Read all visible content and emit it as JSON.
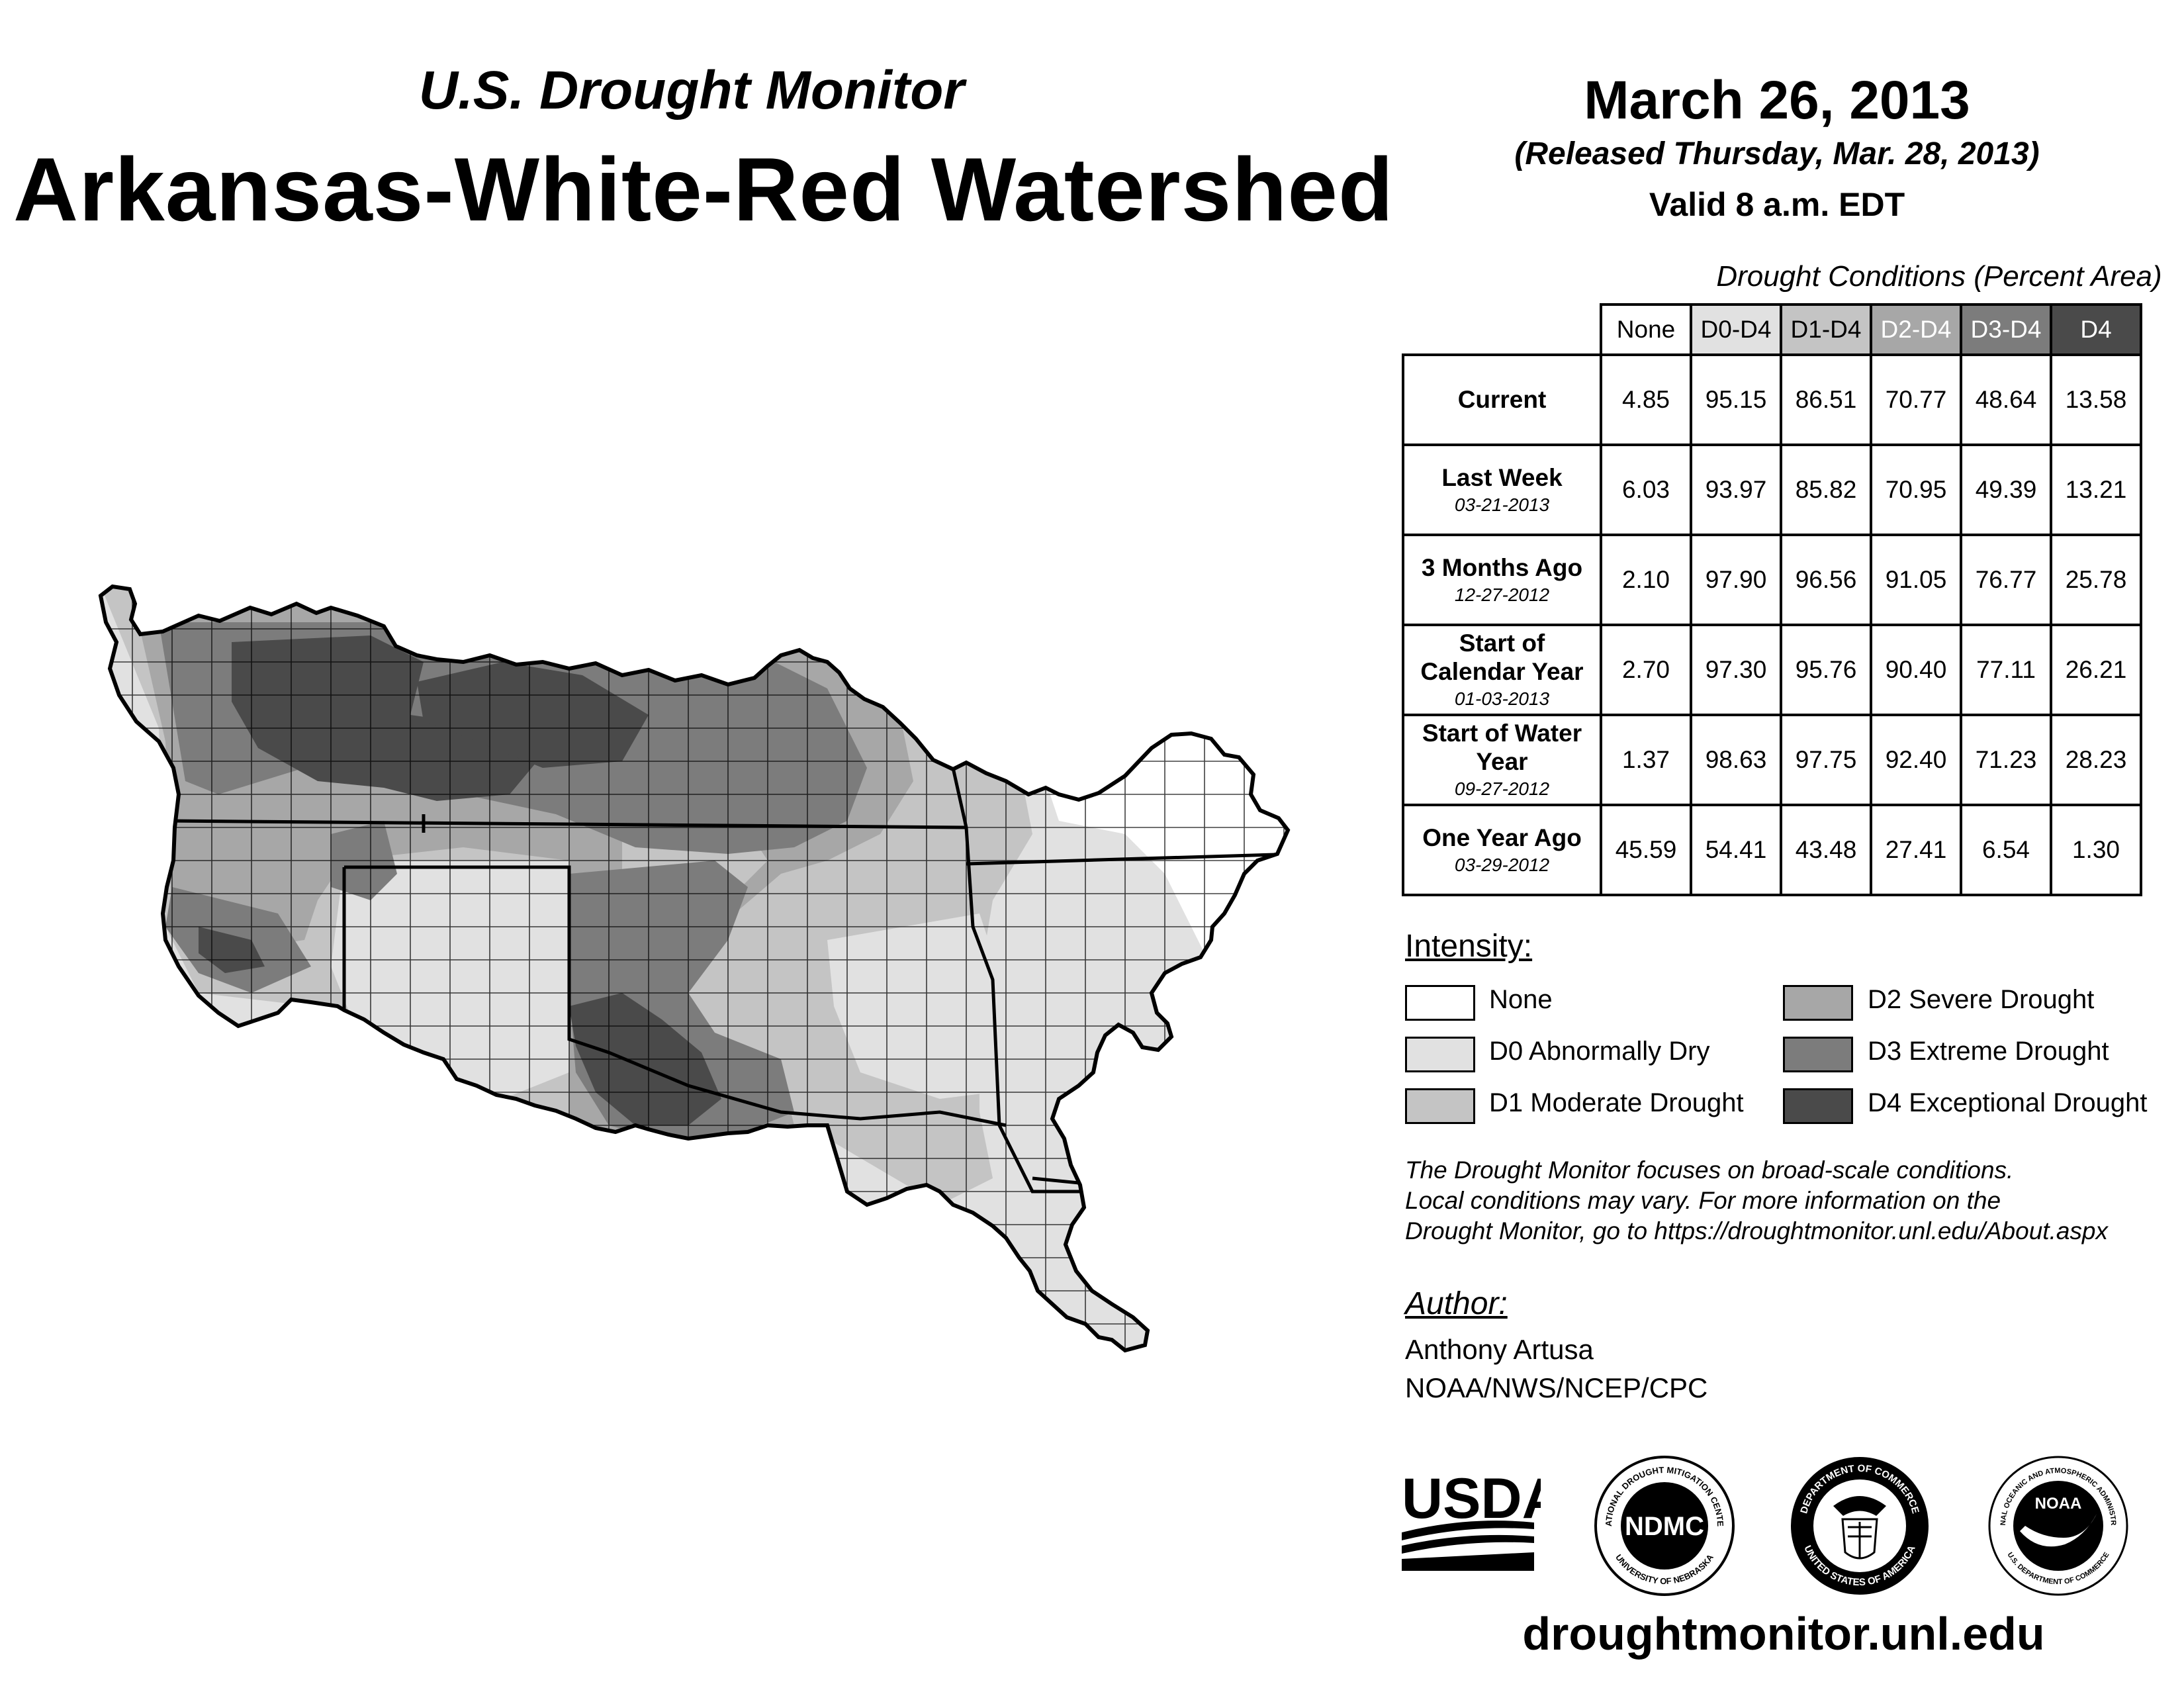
{
  "header": {
    "supertitle": "U.S. Drought Monitor",
    "title": "Arkansas-White-Red Watershed",
    "date": "March 26, 2013",
    "released": "(Released Thursday, Mar. 28, 2013)",
    "valid": "Valid 8 a.m. EDT"
  },
  "conditions": {
    "caption": "Drought Conditions (Percent Area)",
    "columns": [
      "None",
      "D0-D4",
      "D1-D4",
      "D2-D4",
      "D3-D4",
      "D4"
    ],
    "rows": [
      {
        "label": "Current",
        "date": "",
        "values": [
          "4.85",
          "95.15",
          "86.51",
          "70.77",
          "48.64",
          "13.58"
        ]
      },
      {
        "label": "Last Week",
        "date": "03-21-2013",
        "values": [
          "6.03",
          "93.97",
          "85.82",
          "70.95",
          "49.39",
          "13.21"
        ]
      },
      {
        "label": "3 Months Ago",
        "date": "12-27-2012",
        "values": [
          "2.10",
          "97.90",
          "96.56",
          "91.05",
          "76.77",
          "25.78"
        ]
      },
      {
        "label": "Start of Calendar Year",
        "date": "01-03-2013",
        "values": [
          "2.70",
          "97.30",
          "95.76",
          "90.40",
          "77.11",
          "26.21"
        ]
      },
      {
        "label": "Start of Water Year",
        "date": "09-27-2012",
        "values": [
          "1.37",
          "98.63",
          "97.75",
          "92.40",
          "71.23",
          "28.23"
        ]
      },
      {
        "label": "One Year Ago",
        "date": "03-29-2012",
        "values": [
          "45.59",
          "54.41",
          "43.48",
          "27.41",
          "6.54",
          "1.30"
        ]
      }
    ]
  },
  "legend": {
    "title": "Intensity:",
    "items": [
      {
        "label": "None",
        "color": "#ffffff"
      },
      {
        "label": "D0 Abnormally Dry",
        "color": "#e1e1e1"
      },
      {
        "label": "D1 Moderate Drought",
        "color": "#c4c4c4"
      },
      {
        "label": "D2 Severe Drought",
        "color": "#a7a7a7"
      },
      {
        "label": "D3 Extreme Drought",
        "color": "#7c7c7c"
      },
      {
        "label": "D4 Exceptional Drought",
        "color": "#4a4a4a"
      }
    ]
  },
  "disclaimer": {
    "line1": "The Drought Monitor focuses on broad-scale conditions.",
    "line2": "Local conditions may vary. For more information on the",
    "line3": "Drought Monitor, go to https://droughtmonitor.unl.edu/About.aspx"
  },
  "author": {
    "title": "Author:",
    "name": "Anthony Artusa",
    "org": "NOAA/NWS/NCEP/CPC"
  },
  "logos": {
    "usda": "USDA",
    "ndmc": "NDMC",
    "ndmc_ring_top": "NATIONAL DROUGHT MITIGATION CENTER",
    "ndmc_ring_bottom": "UNIVERSITY OF NEBRASKA",
    "doc_ring_top": "DEPARTMENT OF COMMERCE",
    "doc_ring_bottom": "UNITED STATES OF AMERICA",
    "noaa": "NOAA",
    "noaa_ring_top": "NATIONAL OCEANIC AND ATMOSPHERIC ADMINISTRATION",
    "noaa_ring_bottom": "U.S. DEPARTMENT OF COMMERCE"
  },
  "website": "droughtmonitor.unl.edu"
}
